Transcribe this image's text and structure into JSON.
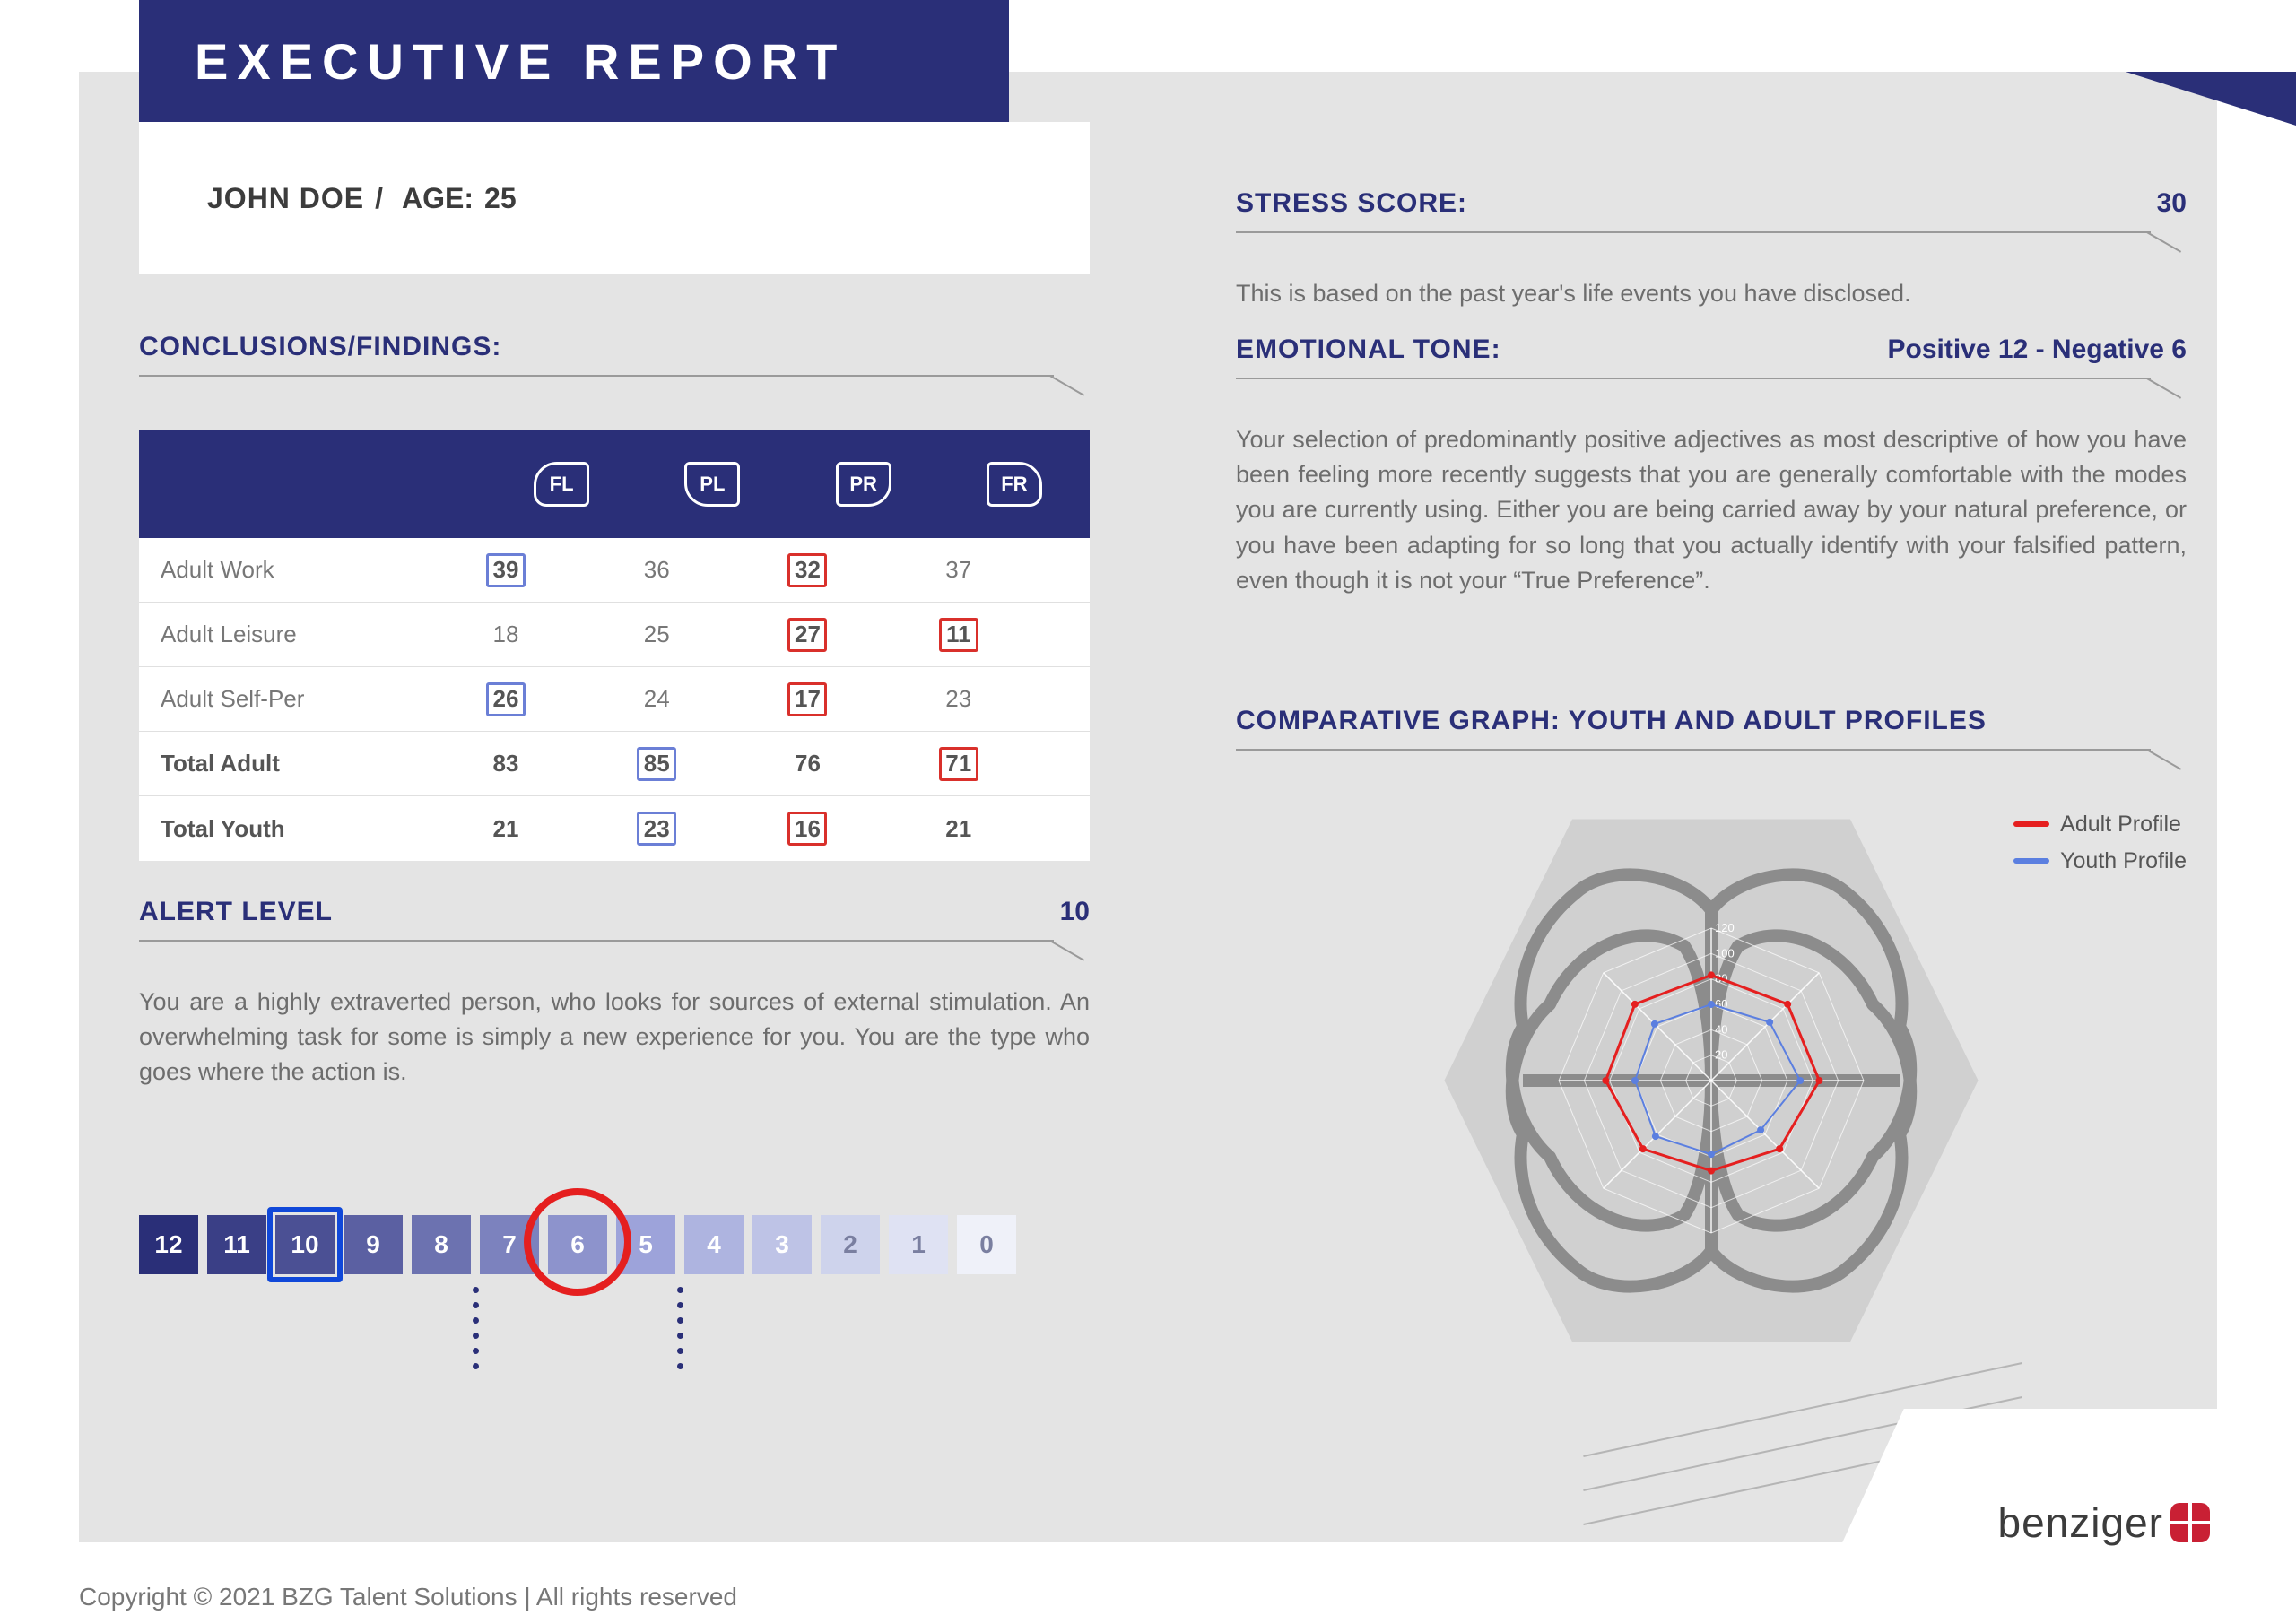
{
  "colors": {
    "navy": "#2a2f78",
    "grey_panel": "#e4e4e4",
    "text_grey": "#6d6d6d",
    "hl_blue": "#6b7fd6",
    "hl_red": "#d9302b",
    "ring_red": "#e51f1f",
    "sel_blue": "#1048d9",
    "logo_red": "#c92034"
  },
  "header": {
    "title": "EXECUTIVE REPORT"
  },
  "subject": {
    "name": "JOHN DOE",
    "sep": " / ",
    "age_label": "AGE:",
    "age": "25"
  },
  "conclusions": {
    "title": "CONCLUSIONS/FINDINGS:"
  },
  "table": {
    "headers": [
      "FL",
      "PL",
      "PR",
      "FR"
    ],
    "rows": [
      {
        "label": "Adult Work",
        "cells": [
          {
            "v": "39",
            "hl": "blue"
          },
          {
            "v": "36"
          },
          {
            "v": "32",
            "hl": "red"
          },
          {
            "v": "37"
          }
        ]
      },
      {
        "label": "Adult Leisure",
        "cells": [
          {
            "v": "18"
          },
          {
            "v": "25"
          },
          {
            "v": "27",
            "hl": "red"
          },
          {
            "v": "11",
            "hl": "red"
          }
        ]
      },
      {
        "label": "Adult Self-Per",
        "cells": [
          {
            "v": "26",
            "hl": "blue"
          },
          {
            "v": "24"
          },
          {
            "v": "17",
            "hl": "red"
          },
          {
            "v": "23"
          }
        ]
      },
      {
        "label": "Total Adult",
        "total": true,
        "cells": [
          {
            "v": "83"
          },
          {
            "v": "85",
            "hl": "blue"
          },
          {
            "v": "76"
          },
          {
            "v": "71",
            "hl": "red"
          }
        ]
      },
      {
        "label": "Total Youth",
        "total": true,
        "cells": [
          {
            "v": "21"
          },
          {
            "v": "23",
            "hl": "blue"
          },
          {
            "v": "16",
            "hl": "red"
          },
          {
            "v": "21"
          }
        ]
      }
    ]
  },
  "alert": {
    "title": "ALERT LEVEL",
    "value": "10",
    "body": "You are a highly extraverted person, who looks for sources of external stimulation. An overwhelming task for some is simply a new experience for you. You are the type who goes where the action is."
  },
  "numstrip": {
    "values": [
      "12",
      "11",
      "10",
      "9",
      "8",
      "7",
      "6",
      "5",
      "4",
      "3",
      "2",
      "1",
      "0"
    ],
    "box_colors": [
      "#2a2f78",
      "#3a3f86",
      "#4b5094",
      "#5b60a2",
      "#6c72b0",
      "#7c82be",
      "#8d93cc",
      "#9da3da",
      "#aeb4e0",
      "#bec3e6",
      "#ced3ec",
      "#dfe2f3",
      "#eff1f9"
    ],
    "selected_index": 2,
    "circle_index": 6,
    "dotted_indices": [
      5,
      8
    ],
    "dot_count": 6
  },
  "stress": {
    "title": "STRESS SCORE:",
    "value": "30",
    "body": "This is based on the past year's life events you have disclosed."
  },
  "emotional": {
    "title": "EMOTIONAL TONE:",
    "value": "Positive 12 - Negative 6",
    "body": "Your selection of predominantly positive adjectives as most descriptive of how you have been feeling more recently suggests that you are generally comfortable with the modes you are currently using. Either you are being carried away by your natural preference, or you have been adapting for so long that you actually identify with your falsified pattern, even though it is not your “True Preference”."
  },
  "comparative": {
    "title": "COMPARATIVE GRAPH: YOUTH AND ADULT PROFILES",
    "legend": [
      {
        "label": "Adult Profile",
        "color": "#e51f1f"
      },
      {
        "label": "Youth Profile",
        "color": "#5b7fe0"
      }
    ],
    "radar": {
      "axes": 8,
      "rings": [
        20,
        40,
        60,
        80,
        100,
        120
      ],
      "adult": [
        83,
        85,
        85,
        76,
        71,
        76,
        83,
        85
      ],
      "youth": [
        60,
        65,
        70,
        55,
        58,
        62,
        60,
        63
      ],
      "adult_color": "#e51f1f",
      "youth_color": "#5b7fe0"
    }
  },
  "logo": {
    "text": "benziger"
  },
  "footer": {
    "text": "Copyright © 2021 BZG Talent Solutions | All rights reserved"
  }
}
